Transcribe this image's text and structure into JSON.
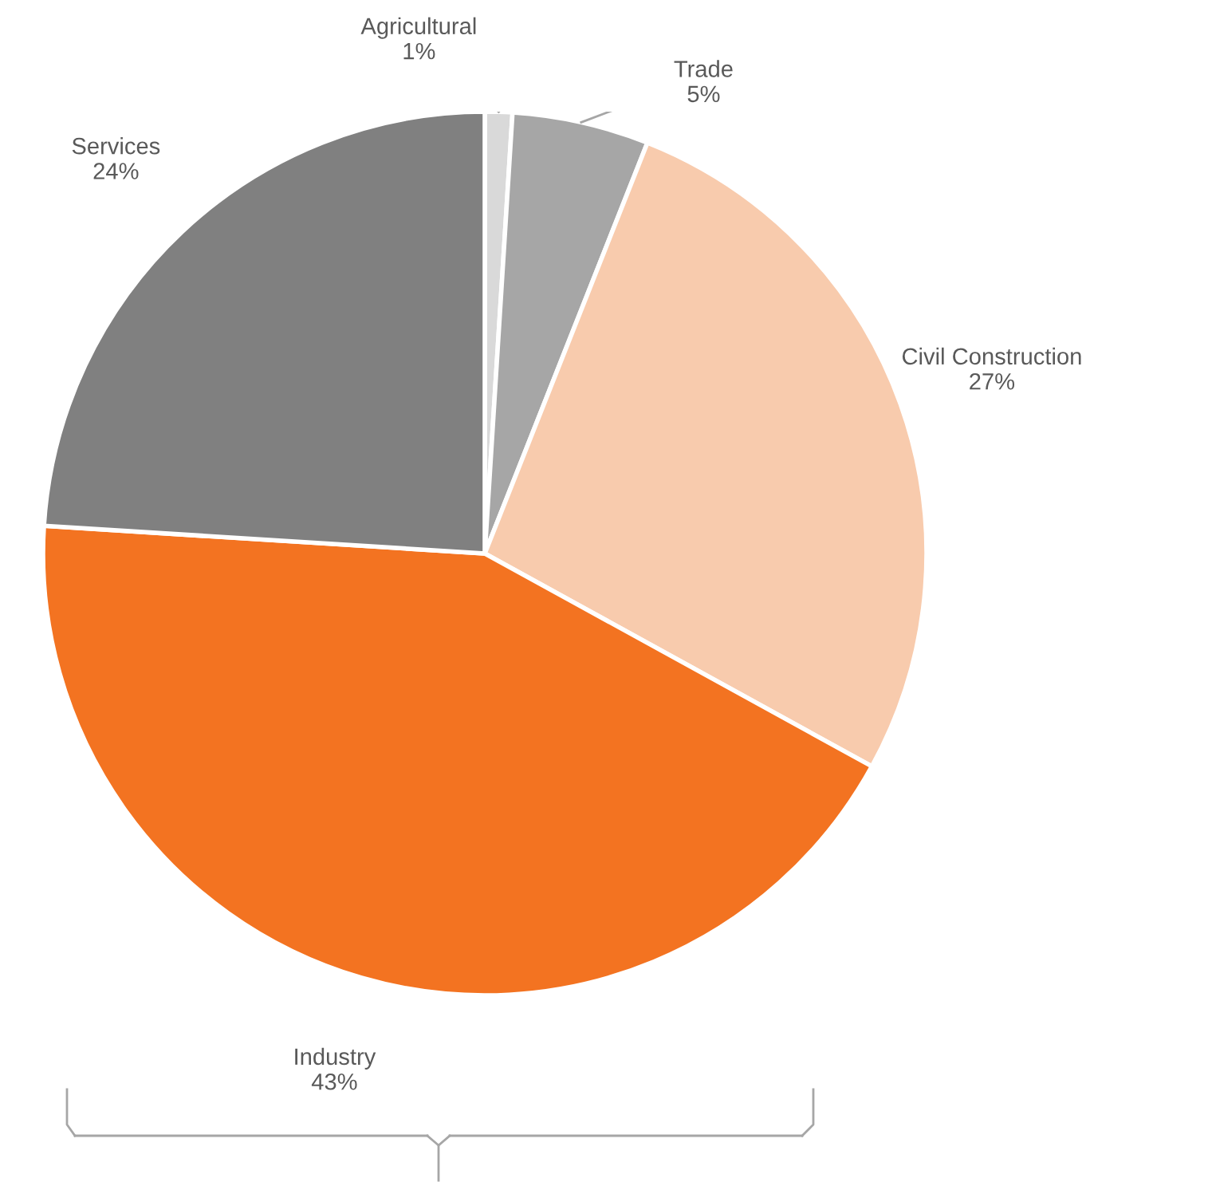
{
  "chart_data": {
    "type": "pie",
    "categories": [
      "Agricultural",
      "Trade",
      "Civil Construction",
      "Industry",
      "Services"
    ],
    "values": [
      1,
      5,
      27,
      43,
      24
    ],
    "value_labels": [
      "1%",
      "5%",
      "27%",
      "43%",
      "24%"
    ],
    "colors": [
      "#d9d9d9",
      "#a6a6a6",
      "#f8cbad",
      "#f37321",
      "#808080"
    ],
    "legend": false
  }
}
